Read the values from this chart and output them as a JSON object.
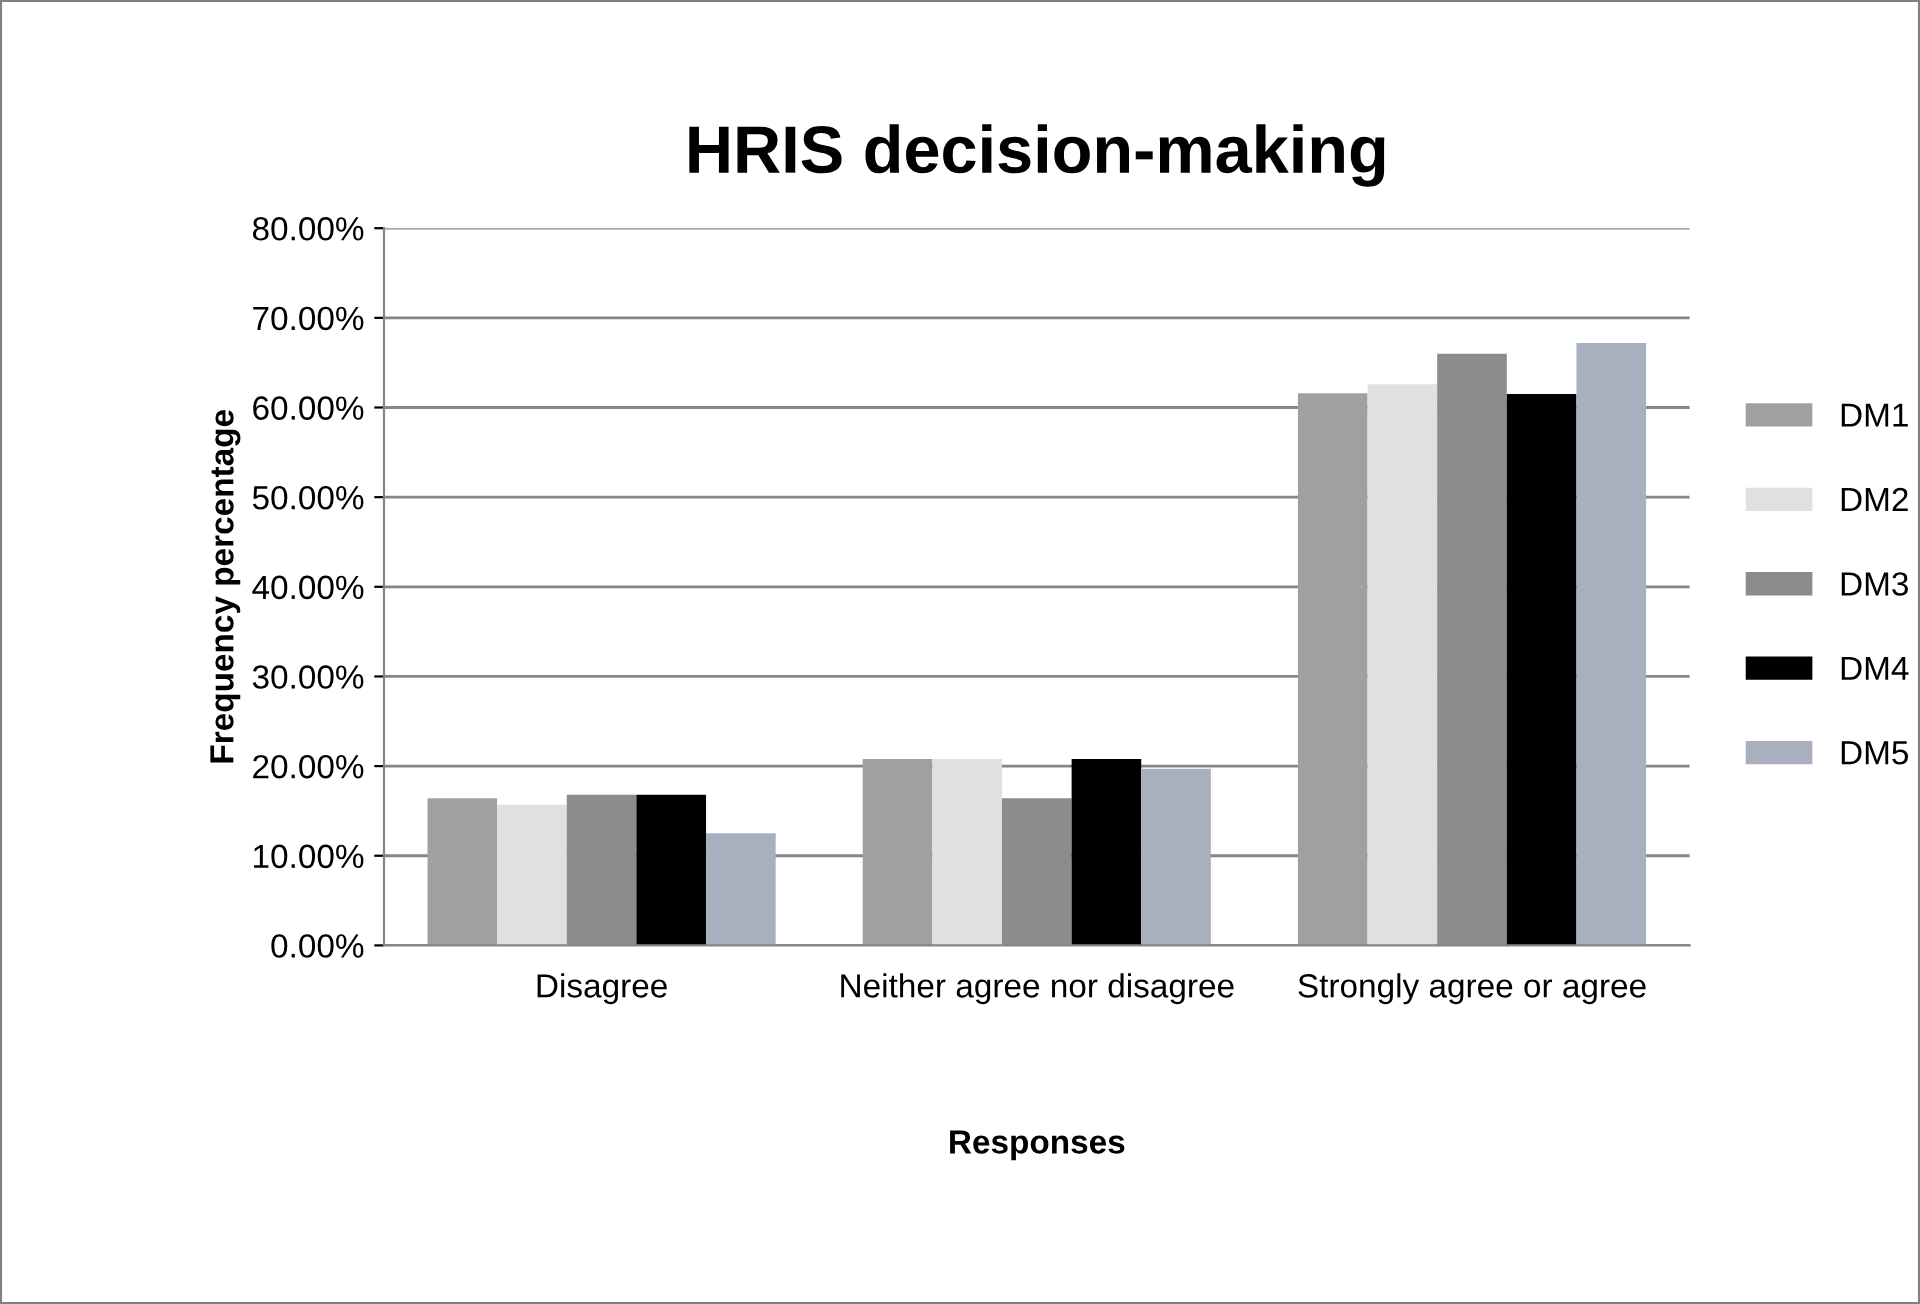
{
  "chart_data": {
    "type": "bar",
    "title": "HRIS decision-making",
    "xlabel": "Responses",
    "ylabel": "Frequency percentage",
    "categories": [
      "Disagree",
      "Neither agree nor disagree",
      "Strongly agree or agree"
    ],
    "series": [
      {
        "name": "DM1",
        "color": "#a0a0a0",
        "values": [
          16.4,
          20.8,
          61.6
        ]
      },
      {
        "name": "DM2",
        "color": "#e0e0e0",
        "values": [
          15.7,
          20.8,
          62.6
        ]
      },
      {
        "name": "DM3",
        "color": "#8c8c8c",
        "values": [
          16.8,
          16.4,
          66.0
        ]
      },
      {
        "name": "DM4",
        "color": "#000000",
        "values": [
          16.8,
          20.8,
          61.5
        ]
      },
      {
        "name": "DM5",
        "color": "#a8b0c0",
        "values": [
          12.5,
          19.7,
          67.2
        ]
      }
    ],
    "ylim": [
      0,
      80
    ],
    "yticks": [
      {
        "value": 0,
        "label": "0.00%"
      },
      {
        "value": 10,
        "label": "10.00%"
      },
      {
        "value": 20,
        "label": "20.00%"
      },
      {
        "value": 30,
        "label": "30.00%"
      },
      {
        "value": 40,
        "label": "40.00%"
      },
      {
        "value": 50,
        "label": "50.00%"
      },
      {
        "value": 60,
        "label": "60.00%"
      },
      {
        "value": 70,
        "label": "70.00%"
      },
      {
        "value": 80,
        "label": "80.00%"
      }
    ],
    "grid": "y",
    "legend": "right"
  }
}
